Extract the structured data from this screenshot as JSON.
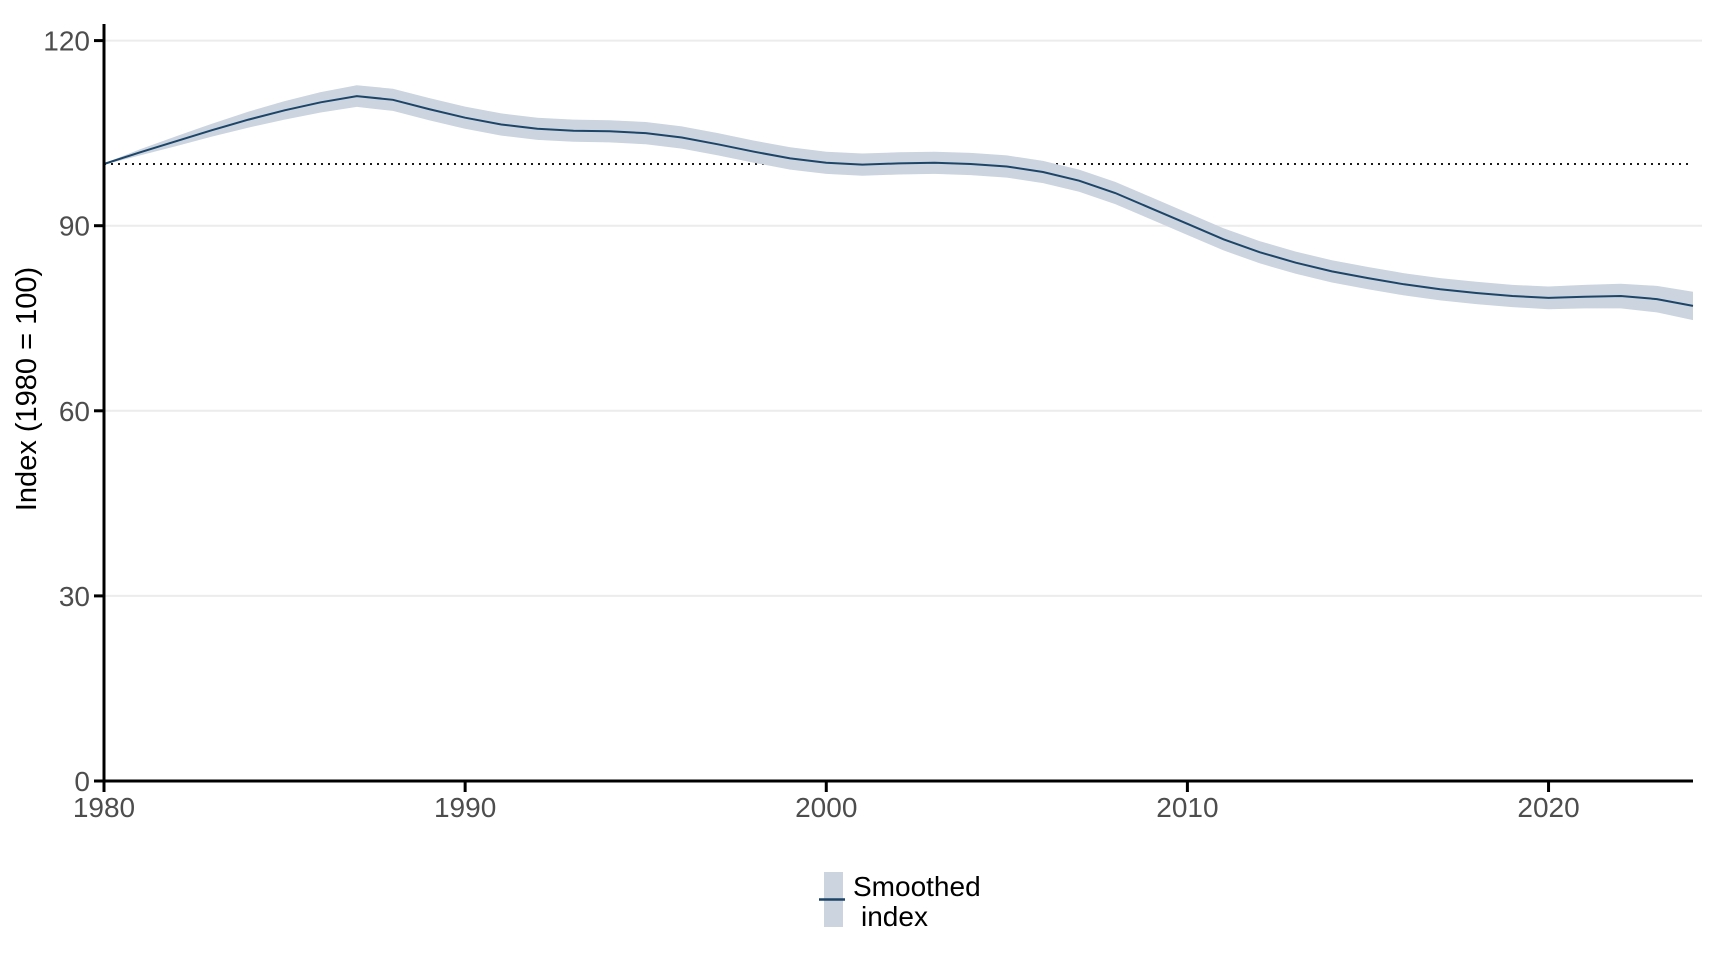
{
  "chart_data": {
    "type": "line",
    "title": "",
    "xlabel": "",
    "ylabel": "Index (1980 = 100)",
    "xlim": [
      1980,
      2024
    ],
    "ylim": [
      0,
      120
    ],
    "x_ticks": [
      1980,
      1990,
      2000,
      2010,
      2020
    ],
    "y_ticks": [
      0,
      30,
      60,
      90,
      120
    ],
    "grid": "horizontal-only",
    "legend_position": "bottom-center",
    "reference_line": {
      "y": 100,
      "style": "dotted"
    },
    "series": [
      {
        "name": "Smoothed index",
        "has_confidence_band": true,
        "x": [
          1980,
          1981,
          1982,
          1983,
          1984,
          1985,
          1986,
          1987,
          1988,
          1989,
          1990,
          1991,
          1992,
          1993,
          1994,
          1995,
          1996,
          1997,
          1998,
          1999,
          2000,
          2001,
          2002,
          2003,
          2004,
          2005,
          2006,
          2007,
          2008,
          2009,
          2010,
          2011,
          2012,
          2013,
          2014,
          2015,
          2016,
          2017,
          2018,
          2019,
          2020,
          2021,
          2022,
          2023,
          2024
        ],
        "y": [
          100,
          101.9,
          103.7,
          105.5,
          107.2,
          108.7,
          110,
          111,
          110.4,
          108.9,
          107.5,
          106.4,
          105.7,
          105.4,
          105.3,
          105,
          104.3,
          103.2,
          102,
          100.9,
          100.2,
          99.9,
          100.1,
          100.2,
          100,
          99.6,
          98.7,
          97.3,
          95.3,
          92.8,
          90.3,
          87.8,
          85.7,
          84,
          82.6,
          81.5,
          80.5,
          79.7,
          79.1,
          78.6,
          78.3,
          78.5,
          78.6,
          78.1,
          77
        ],
        "hi": [
          100.1,
          102.4,
          104.5,
          106.55,
          108.5,
          110.2,
          111.65,
          112.75,
          112.2,
          110.7,
          109.3,
          108.2,
          107.5,
          107.2,
          107.1,
          106.8,
          106.1,
          105,
          103.8,
          102.7,
          102,
          101.7,
          101.9,
          102,
          101.8,
          101.4,
          100.5,
          99.1,
          97.1,
          94.6,
          92.1,
          89.6,
          87.5,
          85.8,
          84.4,
          83.3,
          82.3,
          81.5,
          80.9,
          80.4,
          80.15,
          80.4,
          80.6,
          80.25,
          79.3
        ],
        "lo": [
          99.9,
          101.4,
          102.9,
          104.45,
          105.9,
          107.2,
          108.35,
          109.25,
          108.6,
          107.1,
          105.7,
          104.6,
          103.9,
          103.6,
          103.5,
          103.2,
          102.5,
          101.4,
          100.2,
          99.1,
          98.4,
          98.1,
          98.3,
          98.4,
          98.2,
          97.8,
          96.9,
          95.5,
          93.5,
          91,
          88.5,
          86,
          83.9,
          82.2,
          80.8,
          79.7,
          78.7,
          77.9,
          77.3,
          76.8,
          76.45,
          76.6,
          76.6,
          75.95,
          74.7
        ]
      }
    ]
  },
  "y_axis": {
    "title": "Index (1980 = 100)"
  },
  "legend": {
    "label_line1": "Smoothed",
    "label_line2": "index"
  },
  "colors": {
    "band": "#ccd4df",
    "line": "#1c4568",
    "grid": "#ececec",
    "axis": "#000000",
    "tick_label": "#4d4d4d",
    "text": "#000000",
    "reference_line": "#1a1a1a",
    "background": "#ffffff"
  }
}
